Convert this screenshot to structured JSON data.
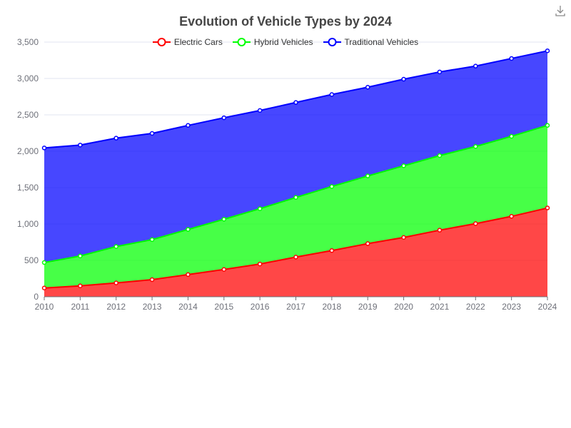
{
  "chart_data": {
    "type": "area",
    "stacked": true,
    "title": "Evolution of Vehicle Types by 2024",
    "xlabel": "",
    "ylabel": "",
    "x": [
      "2010",
      "2011",
      "2012",
      "2013",
      "2014",
      "2015",
      "2016",
      "2017",
      "2018",
      "2019",
      "2020",
      "2021",
      "2022",
      "2023",
      "2024"
    ],
    "ylim": [
      0,
      3500
    ],
    "yticks": [
      "0",
      "500",
      "1,000",
      "1,500",
      "2,000",
      "2,500",
      "3,000",
      "3,500"
    ],
    "grid": true,
    "legend_position": "top-center",
    "series": [
      {
        "name": "Electric Cars",
        "color": "#ff0000",
        "values": [
          120,
          150,
          190,
          235,
          305,
          375,
          450,
          545,
          635,
          730,
          815,
          915,
          1005,
          1105,
          1220
        ]
      },
      {
        "name": "Hybrid Vehicles",
        "color": "#00ff00",
        "values": [
          350,
          410,
          500,
          550,
          620,
          690,
          760,
          820,
          880,
          930,
          985,
          1025,
          1060,
          1100,
          1135
        ]
      },
      {
        "name": "Traditional Vehicles",
        "color": "#0000ff",
        "values": [
          1575,
          1525,
          1490,
          1460,
          1430,
          1395,
          1350,
          1305,
          1265,
          1220,
          1190,
          1150,
          1105,
          1070,
          1025
        ]
      }
    ]
  },
  "toolbar": {
    "download_icon": "download-icon"
  }
}
